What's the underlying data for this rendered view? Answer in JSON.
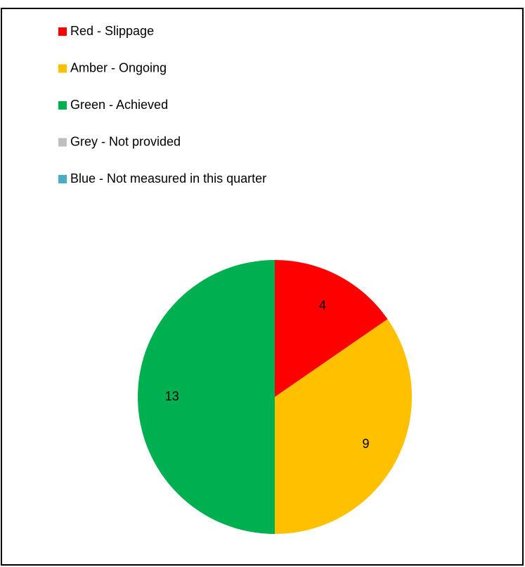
{
  "chart_data": {
    "type": "pie",
    "categories": [
      "Red - Slippage",
      "Amber - Ongoing",
      "Green - Achieved",
      "Grey - Not provided",
      "Blue - Not measured in this quarter"
    ],
    "values": [
      4,
      9,
      13,
      0,
      0
    ],
    "colors": [
      "#ff0000",
      "#ffc000",
      "#00b050",
      "#bfbfbf",
      "#4bacc6"
    ],
    "legend": "top-left"
  }
}
